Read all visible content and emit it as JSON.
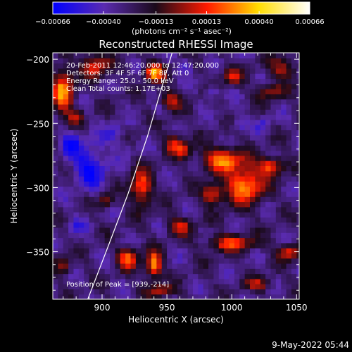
{
  "chart_data": {
    "type": "heatmap",
    "title": "Reconstructed RHESSI Image",
    "xlabel": "Heliocentric X (arcsec)",
    "ylabel": "Heliocentric Y (arcsec)",
    "xlim": [
      862,
      1052
    ],
    "ylim": [
      -387,
      -195
    ],
    "x_ticks": [
      900,
      950,
      1000,
      1050
    ],
    "x_tick_labels": [
      "900",
      "950",
      "1000",
      "1050"
    ],
    "y_ticks": [
      -200,
      -250,
      -300,
      -350
    ],
    "y_tick_labels": [
      "−200",
      "−250",
      "−300",
      "−350"
    ],
    "colorbar": {
      "min": -0.00066,
      "max": 0.00066,
      "ticks": [
        -0.00066,
        -0.0004,
        -0.00013,
        0.00013,
        0.0004,
        0.00066
      ],
      "tick_labels": [
        "−0.00066",
        "−0.00040",
        "−0.00013",
        "0.00013",
        "0.00040",
        "0.00066"
      ],
      "units_label": "(photons cm⁻² s⁻¹ asec⁻²)",
      "colormap": [
        "#0000ff",
        "#5a2bb0",
        "#1a0a1a",
        "#ff1a00",
        "#ffdd00",
        "#ffffff"
      ]
    },
    "annotations": [
      "20-Feb-2011 12:46:20.000 to 12:47:20.000",
      "Detectors: 3F 4F 5F 6F 7F 8F, Att 0",
      "Energy Range: 25.0 - 50.0 keV",
      "Clean    Total counts: 1.17E+03"
    ],
    "peak_label": "Position of Peak = [939,-214]",
    "peak_position": [
      939,
      -214
    ],
    "limb_curve": [
      [
        889,
        -387
      ],
      [
        905,
        -345
      ],
      [
        920,
        -305
      ],
      [
        935,
        -260
      ],
      [
        946,
        -222
      ],
      [
        954,
        -195
      ]
    ],
    "bright_regions": [
      {
        "x": 870,
        "y": -225,
        "intensity": 0.9,
        "rx": 8,
        "ry": 18
      },
      {
        "x": 895,
        "y": -205,
        "intensity": 0.65,
        "rx": 10,
        "ry": 9
      },
      {
        "x": 940,
        "y": -210,
        "intensity": 1.0,
        "rx": 7,
        "ry": 7
      },
      {
        "x": 952,
        "y": -232,
        "intensity": 0.55,
        "rx": 8,
        "ry": 8
      },
      {
        "x": 1000,
        "y": -213,
        "intensity": 0.6,
        "rx": 8,
        "ry": 6
      },
      {
        "x": 1030,
        "y": -225,
        "intensity": 0.5,
        "rx": 10,
        "ry": 6
      },
      {
        "x": 1040,
        "y": -207,
        "intensity": 0.55,
        "rx": 10,
        "ry": 8
      },
      {
        "x": 955,
        "y": -265,
        "intensity": 0.6,
        "rx": 6,
        "ry": 8
      },
      {
        "x": 963,
        "y": -270,
        "intensity": 0.6,
        "rx": 6,
        "ry": 7
      },
      {
        "x": 993,
        "y": -278,
        "intensity": 0.85,
        "rx": 16,
        "ry": 9
      },
      {
        "x": 1010,
        "y": -298,
        "intensity": 0.95,
        "rx": 14,
        "ry": 14
      },
      {
        "x": 1030,
        "y": -283,
        "intensity": 0.75,
        "rx": 10,
        "ry": 7
      },
      {
        "x": 985,
        "y": -305,
        "intensity": 0.7,
        "rx": 8,
        "ry": 8
      },
      {
        "x": 1000,
        "y": -343,
        "intensity": 0.7,
        "rx": 18,
        "ry": 6
      },
      {
        "x": 1045,
        "y": -350,
        "intensity": 0.65,
        "rx": 9,
        "ry": 6
      },
      {
        "x": 930,
        "y": -300,
        "intensity": 0.8,
        "rx": 8,
        "ry": 14
      },
      {
        "x": 903,
        "y": -310,
        "intensity": 0.5,
        "rx": 6,
        "ry": 6
      },
      {
        "x": 940,
        "y": -360,
        "intensity": 0.95,
        "rx": 6,
        "ry": 10
      },
      {
        "x": 920,
        "y": -355,
        "intensity": 0.75,
        "rx": 8,
        "ry": 8
      },
      {
        "x": 960,
        "y": -330,
        "intensity": 0.55,
        "rx": 9,
        "ry": 7
      },
      {
        "x": 945,
        "y": -380,
        "intensity": 0.6,
        "rx": 10,
        "ry": 5
      },
      {
        "x": 1020,
        "y": -375,
        "intensity": 0.5,
        "rx": 10,
        "ry": 5
      },
      {
        "x": 870,
        "y": -360,
        "intensity": 0.45,
        "rx": 6,
        "ry": 8
      },
      {
        "x": 880,
        "y": -245,
        "intensity": 0.4,
        "rx": 6,
        "ry": 6
      }
    ],
    "dark_regions": [
      {
        "x": 890,
        "y": -283,
        "intensity": 1.0,
        "rx": 14,
        "ry": 18
      },
      {
        "x": 875,
        "y": -265,
        "intensity": 0.8,
        "rx": 8,
        "ry": 10
      },
      {
        "x": 910,
        "y": -258,
        "intensity": 0.6,
        "rx": 8,
        "ry": 8
      },
      {
        "x": 965,
        "y": -205,
        "intensity": 0.7,
        "rx": 5,
        "ry": 6
      },
      {
        "x": 985,
        "y": -225,
        "intensity": 0.75,
        "rx": 5,
        "ry": 6
      },
      {
        "x": 1005,
        "y": -250,
        "intensity": 0.55,
        "rx": 6,
        "ry": 6
      },
      {
        "x": 1025,
        "y": -250,
        "intensity": 0.55,
        "rx": 6,
        "ry": 6
      },
      {
        "x": 945,
        "y": -240,
        "intensity": 0.45,
        "rx": 5,
        "ry": 5
      },
      {
        "x": 880,
        "y": -330,
        "intensity": 0.5,
        "rx": 8,
        "ry": 8
      },
      {
        "x": 920,
        "y": -270,
        "intensity": 0.4,
        "rx": 6,
        "ry": 6
      }
    ]
  },
  "footer": {
    "date_stamp": "9-May-2022 05:44"
  }
}
